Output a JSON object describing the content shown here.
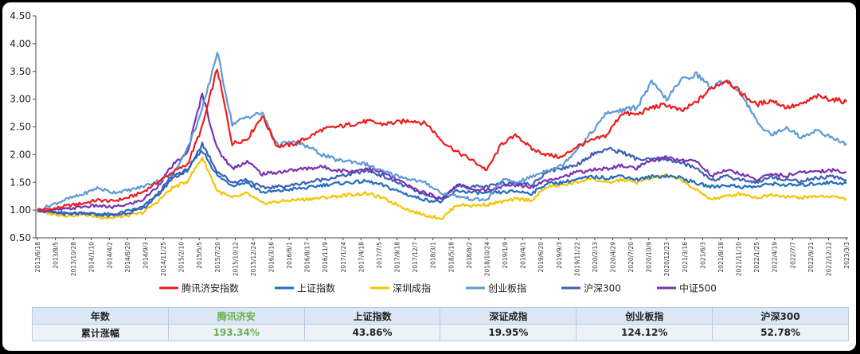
{
  "chart_data": {
    "type": "line",
    "title": "",
    "xlabel": "",
    "ylabel": "",
    "ylim": [
      0.5,
      4.5
    ],
    "y_ticks": [
      "0.50",
      "1.00",
      "1.50",
      "2.00",
      "2.50",
      "3.00",
      "3.50",
      "4.00",
      "4.50"
    ],
    "y_tick_values": [
      0.5,
      1.0,
      1.5,
      2.0,
      2.5,
      3.0,
      3.5,
      4.0,
      4.5
    ],
    "grid": false,
    "legend_position": "bottom",
    "x_ticks": [
      "2013/6/18",
      "2013/8/5",
      "2013/10/28",
      "2014/1/10",
      "2014/4/2",
      "2014/6/20",
      "2014/9/3",
      "2014/11/25",
      "2015/2/10",
      "2015/5/5",
      "2015/7/20",
      "2015/10/12",
      "2015/12/24",
      "2016/3/16",
      "2016/6/1",
      "2016/8/17",
      "2016/11/9",
      "2017/1/24",
      "2017/4/18",
      "2017/7/5",
      "2017/9/18",
      "2017/12/7",
      "2018/3/1",
      "2018/5/18",
      "2018/8/2",
      "2018/10/24",
      "2019/1/9",
      "2019/4/1",
      "2019/6/20",
      "2019/9/3",
      "2019/11/22",
      "2020/2/13",
      "2020/4/29",
      "2020/7/20",
      "2020/10/9",
      "2020/12/23",
      "2021/3/16",
      "2021/6/3",
      "2021/8/18",
      "2021/11/10",
      "2022/1/25",
      "2022/4/19",
      "2022/7/7",
      "2022/9/21",
      "2022/12/12",
      "2023/3/3"
    ],
    "series": [
      {
        "name": "腾讯济安指数",
        "color": "#ee1c1c",
        "values": [
          1.0,
          1.02,
          1.08,
          1.12,
          1.18,
          1.16,
          1.22,
          1.32,
          1.5,
          1.68,
          1.82,
          2.5,
          3.55,
          2.2,
          2.28,
          2.7,
          2.15,
          2.18,
          2.3,
          2.45,
          2.5,
          2.55,
          2.6,
          2.55,
          2.58,
          2.62,
          2.55,
          2.25,
          2.05,
          1.9,
          1.72,
          2.2,
          2.35,
          2.1,
          2.0,
          1.95,
          2.15,
          2.25,
          2.35,
          2.75,
          2.72,
          2.85,
          2.9,
          2.78,
          2.95,
          3.2,
          3.35,
          3.1,
          2.9,
          2.98,
          2.85,
          2.9,
          3.05,
          3.0,
          2.95
        ]
      },
      {
        "name": "上证指数",
        "color": "#1f6ec0",
        "values": [
          1.0,
          0.96,
          0.94,
          0.95,
          0.93,
          0.92,
          0.98,
          1.05,
          1.28,
          1.62,
          1.72,
          2.08,
          1.62,
          1.45,
          1.5,
          1.32,
          1.34,
          1.38,
          1.4,
          1.45,
          1.48,
          1.5,
          1.52,
          1.45,
          1.35,
          1.25,
          1.18,
          1.15,
          1.35,
          1.32,
          1.3,
          1.32,
          1.34,
          1.3,
          1.48,
          1.5,
          1.55,
          1.6,
          1.58,
          1.62,
          1.55,
          1.6,
          1.62,
          1.58,
          1.48,
          1.42,
          1.45,
          1.42,
          1.42,
          1.48,
          1.45,
          1.45,
          1.48,
          1.5,
          1.48
        ]
      },
      {
        "name": "深圳成指",
        "color": "#f5c400",
        "values": [
          1.0,
          0.93,
          0.9,
          0.92,
          0.88,
          0.86,
          0.9,
          0.95,
          1.15,
          1.4,
          1.52,
          1.95,
          1.35,
          1.22,
          1.3,
          1.12,
          1.15,
          1.18,
          1.2,
          1.22,
          1.25,
          1.28,
          1.3,
          1.22,
          1.1,
          0.98,
          0.9,
          0.85,
          1.1,
          1.08,
          1.1,
          1.15,
          1.2,
          1.18,
          1.42,
          1.45,
          1.5,
          1.58,
          1.48,
          1.55,
          1.5,
          1.58,
          1.62,
          1.55,
          1.35,
          1.2,
          1.25,
          1.3,
          1.22,
          1.28,
          1.25,
          1.22,
          1.25,
          1.25,
          1.2
        ]
      },
      {
        "name": "创业板指",
        "color": "#5b9bd5",
        "values": [
          1.0,
          1.1,
          1.2,
          1.28,
          1.4,
          1.32,
          1.35,
          1.42,
          1.52,
          1.65,
          2.1,
          2.8,
          3.85,
          2.55,
          2.68,
          2.75,
          2.18,
          2.22,
          2.15,
          2.0,
          1.9,
          1.88,
          1.82,
          1.7,
          1.62,
          1.55,
          1.48,
          1.3,
          1.25,
          1.2,
          1.18,
          1.55,
          1.5,
          1.6,
          1.72,
          1.8,
          2.1,
          2.4,
          2.75,
          2.8,
          2.85,
          3.3,
          3.0,
          3.35,
          3.45,
          3.2,
          3.35,
          3.1,
          2.6,
          2.35,
          2.5,
          2.3,
          2.45,
          2.3,
          2.2
        ]
      },
      {
        "name": "沪深300",
        "color": "#3a5fb5",
        "values": [
          1.0,
          0.95,
          0.93,
          0.94,
          0.92,
          0.9,
          0.95,
          1.02,
          1.25,
          1.58,
          1.7,
          2.2,
          1.7,
          1.5,
          1.55,
          1.4,
          1.42,
          1.45,
          1.5,
          1.55,
          1.6,
          1.65,
          1.72,
          1.62,
          1.5,
          1.38,
          1.25,
          1.2,
          1.45,
          1.42,
          1.42,
          1.48,
          1.5,
          1.45,
          1.7,
          1.75,
          1.82,
          2.0,
          2.1,
          2.05,
          1.92,
          1.9,
          1.92,
          1.85,
          1.75,
          1.55,
          1.6,
          1.55,
          1.5,
          1.6,
          1.55,
          1.52,
          1.58,
          1.6,
          1.55
        ]
      },
      {
        "name": "中证500",
        "color": "#7a33b3",
        "values": [
          1.0,
          1.0,
          1.02,
          1.06,
          1.08,
          1.05,
          1.1,
          1.18,
          1.42,
          1.8,
          2.02,
          3.1,
          2.1,
          1.75,
          1.88,
          1.65,
          1.68,
          1.72,
          1.75,
          1.78,
          1.72,
          1.7,
          1.75,
          1.68,
          1.55,
          1.4,
          1.3,
          1.2,
          1.45,
          1.38,
          1.35,
          1.42,
          1.45,
          1.42,
          1.55,
          1.6,
          1.68,
          1.72,
          1.75,
          1.8,
          1.75,
          1.9,
          1.95,
          1.9,
          1.88,
          1.62,
          1.72,
          1.65,
          1.55,
          1.65,
          1.62,
          1.68,
          1.7,
          1.72,
          1.68
        ]
      }
    ],
    "table": {
      "header_label": "年数",
      "row_label": "累计涨幅",
      "columns": [
        "腾讯济安",
        "上证指数",
        "深证成指",
        "创业板指",
        "沪深300"
      ],
      "values": [
        "193.34%",
        "43.86%",
        "19.95%",
        "124.12%",
        "52.78%"
      ],
      "highlight_color": "#6ab04c"
    }
  }
}
